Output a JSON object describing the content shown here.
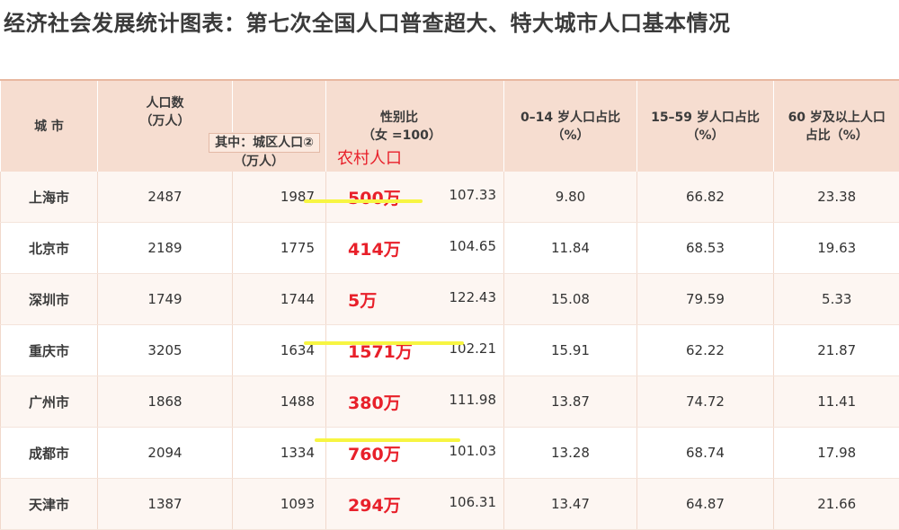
{
  "title": "经济社会发展统计图表：第七次全国人口普查超大、特大城市人口基本情况",
  "headers": {
    "city": "城  市",
    "population_l1": "人口数",
    "population_l2": "（万人）",
    "urban_l1": "其中：城区人口②",
    "urban_l2": "（万人）",
    "sex_l1": "性别比",
    "sex_l2": "（女 =100）",
    "age0_l1": "0–14 岁人口占比",
    "age0_l2": "（%）",
    "age15_l1": "15–59 岁人口占比",
    "age15_l2": "（%）",
    "age60_l1": "60 岁及以上人口",
    "age60_l2": "占比（%）"
  },
  "annotation_heading": "农村人口",
  "rows": [
    {
      "city": "上海市",
      "population": "2487",
      "urban": "1987",
      "rural": "500万",
      "sex_ratio": "107.33",
      "age0_14": "9.80",
      "age15_59": "66.82",
      "age60": "23.38"
    },
    {
      "city": "北京市",
      "population": "2189",
      "urban": "1775",
      "rural": "414万",
      "sex_ratio": "104.65",
      "age0_14": "11.84",
      "age15_59": "68.53",
      "age60": "19.63"
    },
    {
      "city": "深圳市",
      "population": "1749",
      "urban": "1744",
      "rural": "5万",
      "sex_ratio": "122.43",
      "age0_14": "15.08",
      "age15_59": "79.59",
      "age60": "5.33"
    },
    {
      "city": "重庆市",
      "population": "3205",
      "urban": "1634",
      "rural": "1571万",
      "sex_ratio": "102.21",
      "age0_14": "15.91",
      "age15_59": "62.22",
      "age60": "21.87"
    },
    {
      "city": "广州市",
      "population": "1868",
      "urban": "1488",
      "rural": "380万",
      "sex_ratio": "111.98",
      "age0_14": "13.87",
      "age15_59": "74.72",
      "age60": "11.41"
    },
    {
      "city": "成都市",
      "population": "2094",
      "urban": "1334",
      "rural": "760万",
      "sex_ratio": "101.03",
      "age0_14": "13.28",
      "age15_59": "68.74",
      "age60": "17.98"
    },
    {
      "city": "天津市",
      "population": "1387",
      "urban": "1093",
      "rural": "294万",
      "sex_ratio": "106.31",
      "age0_14": "13.47",
      "age15_59": "64.87",
      "age60": "21.66"
    }
  ],
  "colors": {
    "annotation": "#e8202a",
    "highlight": "#f7f542",
    "header_bg": "#f6ddd0"
  }
}
